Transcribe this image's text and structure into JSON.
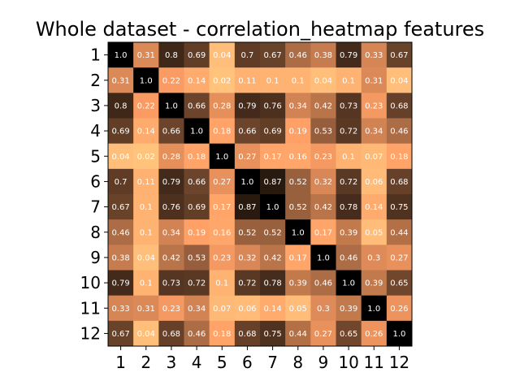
{
  "chart_data": {
    "type": "heatmap",
    "title": "Whole dataset - correlation_heatmap features",
    "x_labels": [
      "1",
      "2",
      "3",
      "4",
      "5",
      "6",
      "7",
      "8",
      "9",
      "10",
      "11",
      "12"
    ],
    "y_labels": [
      "1",
      "2",
      "3",
      "4",
      "5",
      "6",
      "7",
      "8",
      "9",
      "10",
      "11",
      "12"
    ],
    "colormap": "copper_r",
    "value_range": [
      0,
      1
    ],
    "values": [
      [
        1.0,
        0.31,
        0.8,
        0.69,
        0.04,
        0.7,
        0.67,
        0.46,
        0.38,
        0.79,
        0.33,
        0.67
      ],
      [
        0.31,
        1.0,
        0.22,
        0.14,
        0.02,
        0.11,
        0.1,
        0.1,
        0.04,
        0.1,
        0.31,
        0.04
      ],
      [
        0.8,
        0.22,
        1.0,
        0.66,
        0.28,
        0.79,
        0.76,
        0.34,
        0.42,
        0.73,
        0.23,
        0.68
      ],
      [
        0.69,
        0.14,
        0.66,
        1.0,
        0.18,
        0.66,
        0.69,
        0.19,
        0.53,
        0.72,
        0.34,
        0.46
      ],
      [
        0.04,
        0.02,
        0.28,
        0.18,
        1.0,
        0.27,
        0.17,
        0.16,
        0.23,
        0.1,
        0.07,
        0.18
      ],
      [
        0.7,
        0.11,
        0.79,
        0.66,
        0.27,
        1.0,
        0.87,
        0.52,
        0.32,
        0.72,
        0.06,
        0.68
      ],
      [
        0.67,
        0.1,
        0.76,
        0.69,
        0.17,
        0.87,
        1.0,
        0.52,
        0.42,
        0.78,
        0.14,
        0.75
      ],
      [
        0.46,
        0.1,
        0.34,
        0.19,
        0.16,
        0.52,
        0.52,
        1.0,
        0.17,
        0.39,
        0.05,
        0.44
      ],
      [
        0.38,
        0.04,
        0.42,
        0.53,
        0.23,
        0.32,
        0.42,
        0.17,
        1.0,
        0.46,
        0.3,
        0.27
      ],
      [
        0.79,
        0.1,
        0.73,
        0.72,
        0.1,
        0.72,
        0.78,
        0.39,
        0.46,
        1.0,
        0.39,
        0.65
      ],
      [
        0.33,
        0.31,
        0.23,
        0.34,
        0.07,
        0.06,
        0.14,
        0.05,
        0.3,
        0.39,
        1.0,
        0.26
      ],
      [
        0.67,
        0.04,
        0.68,
        0.46,
        0.18,
        0.68,
        0.75,
        0.44,
        0.27,
        0.65,
        0.26,
        1.0
      ]
    ],
    "value_labels": [
      [
        "1.0",
        "0.31",
        "0.8",
        "0.69",
        "0.04",
        "0.7",
        "0.67",
        "0.46",
        "0.38",
        "0.79",
        "0.33",
        "0.67"
      ],
      [
        "0.31",
        "1.0",
        "0.22",
        "0.14",
        "0.02",
        "0.11",
        "0.1",
        "0.1",
        "0.04",
        "0.1",
        "0.31",
        "0.04"
      ],
      [
        "0.8",
        "0.22",
        "1.0",
        "0.66",
        "0.28",
        "0.79",
        "0.76",
        "0.34",
        "0.42",
        "0.73",
        "0.23",
        "0.68"
      ],
      [
        "0.69",
        "0.14",
        "0.66",
        "1.0",
        "0.18",
        "0.66",
        "0.69",
        "0.19",
        "0.53",
        "0.72",
        "0.34",
        "0.46"
      ],
      [
        "0.04",
        "0.02",
        "0.28",
        "0.18",
        "1.0",
        "0.27",
        "0.17",
        "0.16",
        "0.23",
        "0.1",
        "0.07",
        "0.18"
      ],
      [
        "0.7",
        "0.11",
        "0.79",
        "0.66",
        "0.27",
        "1.0",
        "0.87",
        "0.52",
        "0.32",
        "0.72",
        "0.06",
        "0.68"
      ],
      [
        "0.67",
        "0.1",
        "0.76",
        "0.69",
        "0.17",
        "0.87",
        "1.0",
        "0.52",
        "0.42",
        "0.78",
        "0.14",
        "0.75"
      ],
      [
        "0.46",
        "0.1",
        "0.34",
        "0.19",
        "0.16",
        "0.52",
        "0.52",
        "1.0",
        "0.17",
        "0.39",
        "0.05",
        "0.44"
      ],
      [
        "0.38",
        "0.04",
        "0.42",
        "0.53",
        "0.23",
        "0.32",
        "0.42",
        "0.17",
        "1.0",
        "0.46",
        "0.3",
        "0.27"
      ],
      [
        "0.79",
        "0.1",
        "0.73",
        "0.72",
        "0.1",
        "0.72",
        "0.78",
        "0.39",
        "0.46",
        "1.0",
        "0.39",
        "0.65"
      ],
      [
        "0.33",
        "0.31",
        "0.23",
        "0.34",
        "0.07",
        "0.06",
        "0.14",
        "0.05",
        "0.3",
        "0.39",
        "1.0",
        "0.26"
      ],
      [
        "0.67",
        "0.04",
        "0.68",
        "0.46",
        "0.18",
        "0.68",
        "0.75",
        "0.44",
        "0.27",
        "0.65",
        "0.26",
        "1.0"
      ]
    ],
    "label_color": "#ffffff",
    "legend": "none",
    "grid": false
  }
}
